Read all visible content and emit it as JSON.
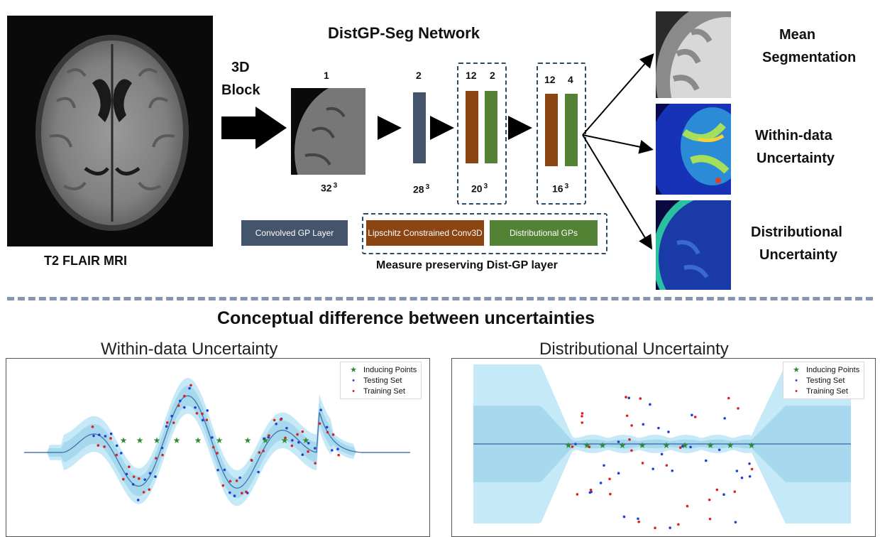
{
  "network": {
    "title": "DistGP-Seg Network",
    "input_label": "T2 FLAIR MRI",
    "block_label_line1": "3D",
    "block_label_line2": "Block",
    "stages": [
      {
        "top": "1",
        "bottom": "32",
        "exp": "3"
      },
      {
        "top": "2",
        "bottom": "28",
        "exp": "3"
      },
      {
        "top_a": "12",
        "top_b": "2",
        "bottom": "20",
        "exp": "3"
      },
      {
        "top_a": "12",
        "top_b": "4",
        "bottom": "16",
        "exp": "3"
      }
    ],
    "legend": {
      "gp_layer": "Convolved GP Layer",
      "lipschitz": "Lipschitz Constrained Conv3D",
      "dist_gps": "Distributional GPs",
      "caption": "Measure preserving Dist-GP layer"
    },
    "outputs": [
      {
        "line1": "Mean",
        "line2": "Segmentation"
      },
      {
        "line1": "Within-data",
        "line2": "Uncertainty"
      },
      {
        "line1": "Distributional",
        "line2": "Uncertainty"
      }
    ]
  },
  "section_title": "Conceptual difference between uncertainties",
  "plots": {
    "left_title": "Within-data Uncertainty",
    "right_title": "Distributional Uncertainty",
    "legend": [
      "Inducing Points",
      "Testing Set",
      "Training Set"
    ]
  },
  "colors": {
    "gp_layer": "#44546a",
    "lipschitz": "#8b4513",
    "dist_gp": "#548235",
    "dashed": "#2c4a66",
    "separator": "#8497b0",
    "band_light": "#c5e9f7",
    "band_dark": "#a6d8ee",
    "mean_line": "#4a78b0",
    "inducing": "#2e8b2e",
    "testing": "#1f3fd6",
    "training": "#e02020"
  }
}
